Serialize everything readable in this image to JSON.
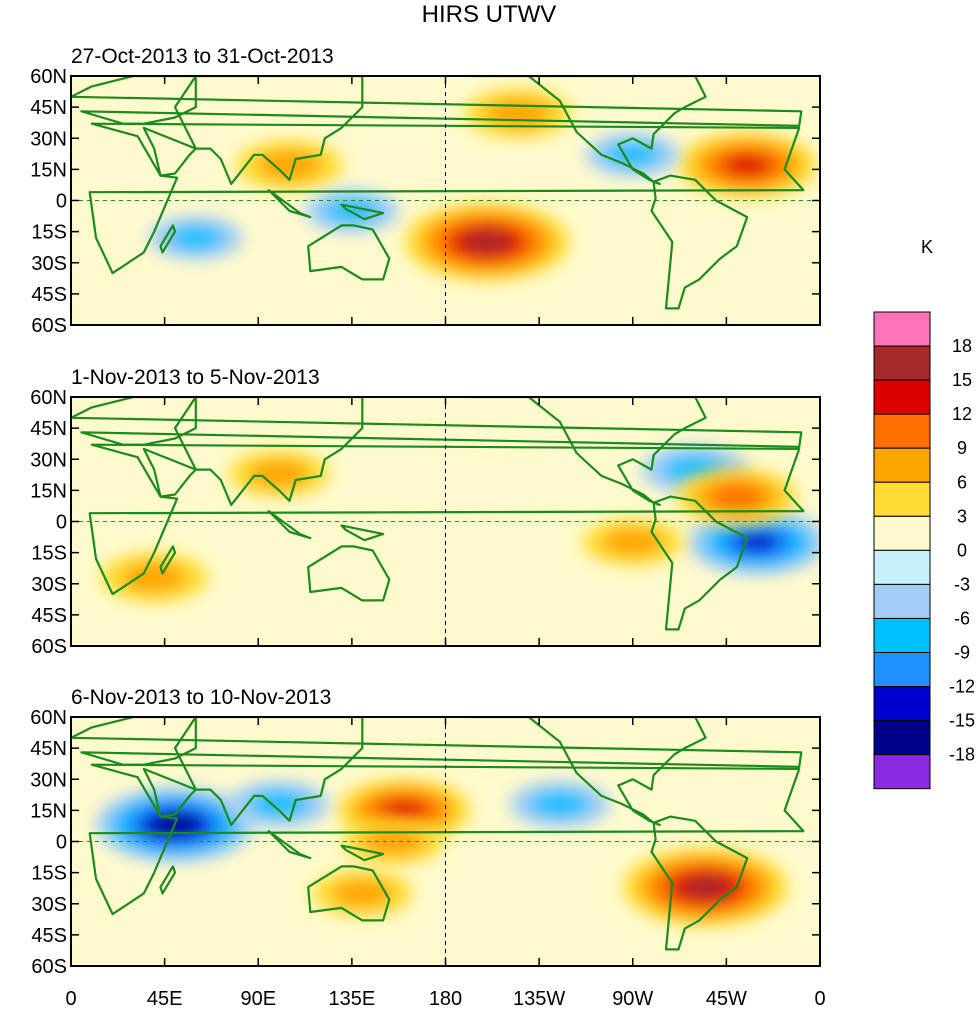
{
  "chart_data": {
    "type": "heatmap",
    "title": "HIRS UTWV",
    "units": "K",
    "lon_range": [
      0,
      360
    ],
    "lat_range": [
      -60,
      60
    ],
    "y_ticks": [
      "60N",
      "45N",
      "30N",
      "15N",
      "0",
      "15S",
      "30S",
      "45S",
      "60S"
    ],
    "y_tick_values": [
      60,
      45,
      30,
      15,
      0,
      -15,
      -30,
      -45,
      -60
    ],
    "x_ticks": [
      "0",
      "45E",
      "90E",
      "135E",
      "180",
      "135W",
      "90W",
      "45W",
      "0"
    ],
    "x_tick_values": [
      0,
      45,
      90,
      135,
      180,
      225,
      270,
      315,
      360
    ],
    "colorbar": {
      "labels": [
        "18",
        "15",
        "12",
        "9",
        "6",
        "3",
        "0",
        "-3",
        "-6",
        "-9",
        "-12",
        "-15",
        "-18"
      ],
      "levels": [
        18,
        15,
        12,
        9,
        6,
        3,
        0,
        -3,
        -6,
        -9,
        -12,
        -15,
        -18
      ],
      "colors": [
        "#ff73b8",
        "#a52a2a",
        "#dc0000",
        "#ff6e00",
        "#ffa500",
        "#ffdc32",
        "#fffacd",
        "#c6f0fa",
        "#a2cdf5",
        "#00bfff",
        "#1e90ff",
        "#0000cd",
        "#00008b",
        "#8a2be2"
      ]
    },
    "panels": [
      {
        "subtitle": "27-Oct-2013 to 31-Oct-2013",
        "anomalies": [
          {
            "lon": 200,
            "lat": -20,
            "value": 17,
            "feature": "maximum"
          },
          {
            "lon": 325,
            "lat": 17,
            "value": 13,
            "feature": "maximum"
          },
          {
            "lon": 215,
            "lat": 42,
            "value": 8,
            "feature": "positive"
          },
          {
            "lon": 105,
            "lat": 17,
            "value": 8,
            "feature": "positive"
          },
          {
            "lon": 135,
            "lat": -5,
            "value": -6,
            "feature": "negative"
          },
          {
            "lon": 270,
            "lat": 22,
            "value": -6,
            "feature": "negative"
          },
          {
            "lon": 60,
            "lat": -18,
            "value": -6,
            "feature": "negative"
          }
        ]
      },
      {
        "subtitle": "1-Nov-2013 to 5-Nov-2013",
        "anomalies": [
          {
            "lon": 330,
            "lat": -10,
            "value": -13,
            "feature": "minimum"
          },
          {
            "lon": 300,
            "lat": 25,
            "value": -8,
            "feature": "negative"
          },
          {
            "lon": 40,
            "lat": -27,
            "value": 8,
            "feature": "positive"
          },
          {
            "lon": 270,
            "lat": -10,
            "value": 7,
            "feature": "positive"
          },
          {
            "lon": 320,
            "lat": 12,
            "value": 10,
            "feature": "positive"
          },
          {
            "lon": 100,
            "lat": 23,
            "value": 7,
            "feature": "positive"
          }
        ]
      },
      {
        "subtitle": "6-Nov-2013 to 10-Nov-2013",
        "anomalies": [
          {
            "lon": 50,
            "lat": 8,
            "value": -16,
            "feature": "minimum"
          },
          {
            "lon": 305,
            "lat": -22,
            "value": 17,
            "feature": "maximum"
          },
          {
            "lon": 160,
            "lat": 15,
            "value": 12,
            "feature": "maximum"
          },
          {
            "lon": 235,
            "lat": 18,
            "value": -7,
            "feature": "negative"
          },
          {
            "lon": 100,
            "lat": 18,
            "value": -7,
            "feature": "negative"
          },
          {
            "lon": 155,
            "lat": 0,
            "value": 7,
            "feature": "positive"
          },
          {
            "lon": 140,
            "lat": -25,
            "value": 7,
            "feature": "positive"
          }
        ]
      }
    ]
  }
}
